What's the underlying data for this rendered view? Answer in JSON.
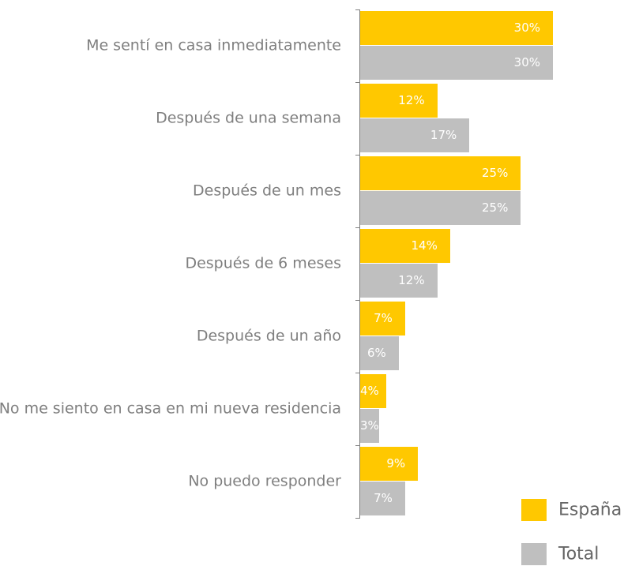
{
  "chart_data": {
    "type": "bar",
    "orientation": "horizontal",
    "categories": [
      "Me sentí en casa inmediatamente",
      "Después de una semana",
      "Después de un mes",
      "Después de 6 meses",
      "Después de un año",
      "No me siento en casa en mi nueva residencia",
      "No puedo responder"
    ],
    "series": [
      {
        "name": "España",
        "color": "#ffc800",
        "values": [
          30,
          12,
          25,
          14,
          7,
          4,
          9
        ],
        "value_labels": [
          "30%",
          "12%",
          "25%",
          "14%",
          "7%",
          "4%",
          "9%"
        ]
      },
      {
        "name": "Total",
        "color": "#bfbfbf",
        "values": [
          30,
          17,
          25,
          12,
          6,
          3,
          7
        ],
        "value_labels": [
          "30%",
          "17%",
          "25%",
          "12%",
          "6%",
          "3%",
          "7%"
        ]
      }
    ],
    "legend": "bottom-right"
  }
}
